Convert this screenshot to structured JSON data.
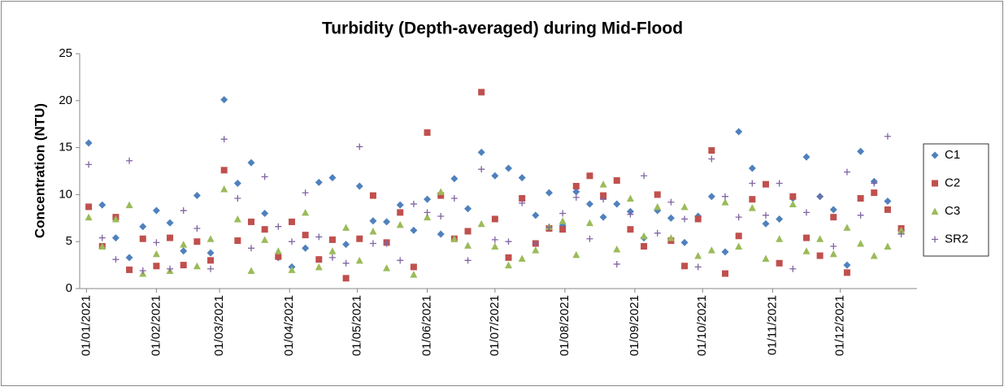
{
  "chart_data": {
    "type": "scatter",
    "title": "Turbidity (Depth-averaged) during Mid-Flood",
    "y_label": "Concentration (NTU)",
    "x": [
      "02/01/2021",
      "08/01/2021",
      "14/01/2021",
      "20/01/2021",
      "26/01/2021",
      "01/02/2021",
      "07/02/2021",
      "13/02/2021",
      "19/02/2021",
      "25/02/2021",
      "03/03/2021",
      "09/03/2021",
      "15/03/2021",
      "21/03/2021",
      "27/03/2021",
      "02/04/2021",
      "08/04/2021",
      "14/04/2021",
      "20/04/2021",
      "26/04/2021",
      "02/05/2021",
      "08/05/2021",
      "14/05/2021",
      "20/05/2021",
      "26/05/2021",
      "01/06/2021",
      "07/06/2021",
      "13/06/2021",
      "19/06/2021",
      "25/06/2021",
      "01/07/2021",
      "07/07/2021",
      "13/07/2021",
      "19/07/2021",
      "25/07/2021",
      "31/07/2021",
      "06/08/2021",
      "12/08/2021",
      "18/08/2021",
      "24/08/2021",
      "30/08/2021",
      "05/09/2021",
      "11/09/2021",
      "17/09/2021",
      "23/09/2021",
      "29/09/2021",
      "05/10/2021",
      "11/10/2021",
      "17/10/2021",
      "23/10/2021",
      "29/10/2021",
      "04/11/2021",
      "10/11/2021",
      "16/11/2021",
      "22/11/2021",
      "28/11/2021",
      "04/12/2021",
      "10/12/2021",
      "16/12/2021",
      "22/12/2021",
      "28/12/2021"
    ],
    "series": [
      {
        "name": "C1",
        "color": "#4f81bd",
        "marker": "diamond",
        "values": [
          15.5,
          8.9,
          5.4,
          3.3,
          6.6,
          8.3,
          7.0,
          4.0,
          9.9,
          3.8,
          20.1,
          11.2,
          13.4,
          8.0,
          3.3,
          2.3,
          4.3,
          11.3,
          11.8,
          4.7,
          10.9,
          7.2,
          7.1,
          8.9,
          6.2,
          9.5,
          5.8,
          11.7,
          8.5,
          14.5,
          12.0,
          12.8,
          11.8,
          7.8,
          10.2,
          6.7,
          10.3,
          9.0,
          7.6,
          9.0,
          8.2,
          5.4,
          8.3,
          7.5,
          4.9,
          7.7,
          9.8,
          3.9,
          16.7,
          12.8,
          6.9,
          7.4,
          9.6,
          14.0,
          9.8,
          8.4,
          2.5,
          14.6,
          11.4,
          9.3,
          6.2
        ]
      },
      {
        "name": "C2",
        "color": "#c0504d",
        "marker": "square",
        "values": [
          8.7,
          4.5,
          7.6,
          2.0,
          5.3,
          2.4,
          5.4,
          2.5,
          5.0,
          3.0,
          12.6,
          5.1,
          7.1,
          6.3,
          3.4,
          7.1,
          5.7,
          3.1,
          5.2,
          1.1,
          5.3,
          9.9,
          4.9,
          8.1,
          2.3,
          16.6,
          9.9,
          5.3,
          6.1,
          20.9,
          7.4,
          3.3,
          9.6,
          4.8,
          6.4,
          6.3,
          10.9,
          12.0,
          9.9,
          11.5,
          6.3,
          4.5,
          10.0,
          5.1,
          2.4,
          7.4,
          14.7,
          1.6,
          5.6,
          9.5,
          11.1,
          2.7,
          9.8,
          5.4,
          3.5,
          7.6,
          1.7,
          9.6,
          10.2,
          8.4,
          6.4
        ]
      },
      {
        "name": "C3",
        "color": "#9bbb59",
        "marker": "triangle",
        "values": [
          7.6,
          4.5,
          7.4,
          8.9,
          1.6,
          3.7,
          1.9,
          4.7,
          2.4,
          5.3,
          10.6,
          7.4,
          1.9,
          5.2,
          4.0,
          2.0,
          8.1,
          2.3,
          4.0,
          6.5,
          3.0,
          6.1,
          2.2,
          6.8,
          1.5,
          7.6,
          10.3,
          5.3,
          4.6,
          6.9,
          4.5,
          2.5,
          3.2,
          4.1,
          6.6,
          7.2,
          3.6,
          7.0,
          11.1,
          4.2,
          9.6,
          5.6,
          8.7,
          5.4,
          8.7,
          3.5,
          4.1,
          9.2,
          4.5,
          8.6,
          3.2,
          5.3,
          9.0,
          4.0,
          5.3,
          3.7,
          6.5,
          4.8,
          3.5,
          4.5,
          6.2
        ]
      },
      {
        "name": "SR2",
        "color": "#8064a2",
        "marker": "plus",
        "values": [
          13.2,
          5.4,
          3.1,
          13.6,
          1.9,
          4.9,
          2.1,
          8.3,
          6.4,
          2.1,
          15.9,
          9.6,
          4.3,
          11.9,
          6.6,
          5.0,
          10.2,
          5.5,
          3.3,
          2.7,
          15.1,
          4.8,
          4.8,
          3.0,
          9.0,
          8.1,
          7.7,
          9.6,
          3.0,
          12.7,
          5.2,
          5.0,
          9.1,
          4.8,
          6.5,
          8.0,
          9.7,
          5.3,
          9.5,
          2.6,
          7.9,
          12.0,
          5.9,
          9.2,
          7.4,
          2.3,
          13.8,
          9.8,
          7.6,
          11.2,
          7.8,
          11.2,
          2.1,
          8.1,
          9.8,
          4.5,
          12.4,
          7.8,
          11.2,
          16.2,
          5.8
        ]
      }
    ],
    "xlim": [
      "29/12/2020",
      "04/01/2022"
    ],
    "xticks": [
      "01/01/2021",
      "01/02/2021",
      "01/03/2021",
      "01/04/2021",
      "01/05/2021",
      "01/06/2021",
      "01/07/2021",
      "01/08/2021",
      "01/09/2021",
      "01/10/2021",
      "01/11/2021",
      "01/12/2021"
    ],
    "ylim": [
      0,
      25
    ],
    "yticks": [
      0,
      5,
      10,
      15,
      20,
      25
    ],
    "grid": false,
    "legend": "right"
  }
}
